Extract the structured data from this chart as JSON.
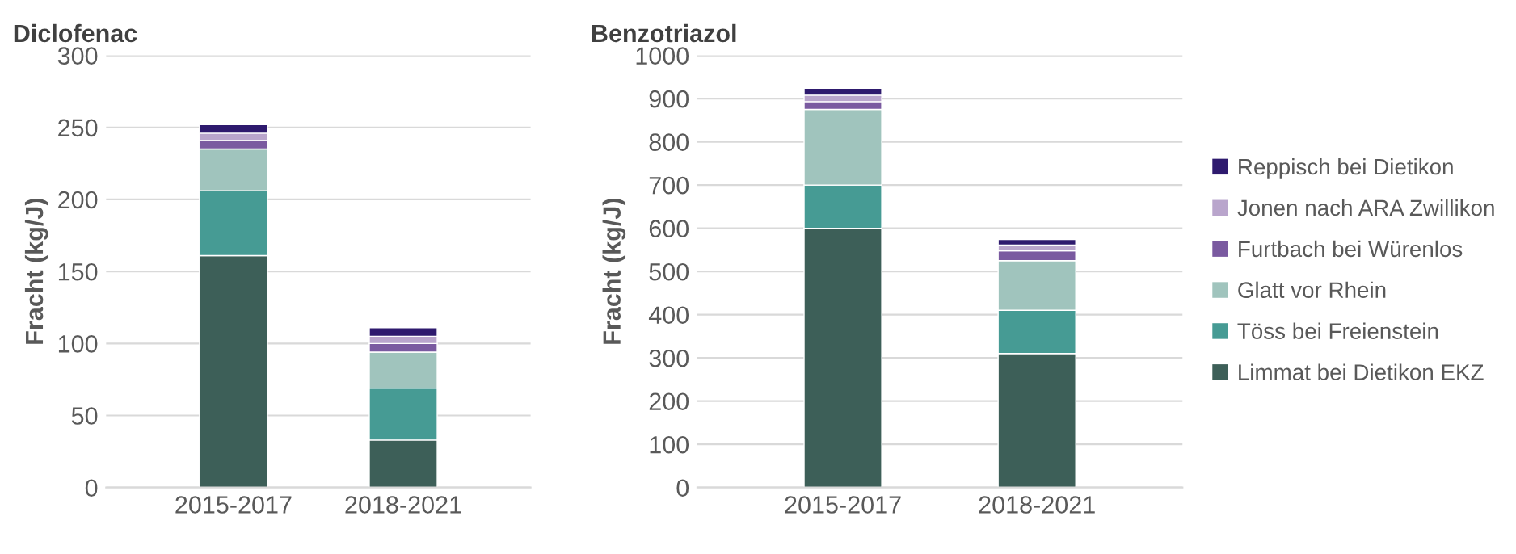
{
  "chart_data": [
    {
      "type": "bar",
      "title": "Diclofenac",
      "ylabel": "Fracht (kg/J)",
      "categories": [
        "2015-2017",
        "2018-2021"
      ],
      "stacked": true,
      "ylim": [
        0,
        300
      ],
      "yticks": [
        0,
        50,
        100,
        150,
        200,
        250,
        300
      ],
      "grid": "y",
      "legend": false,
      "series": [
        {
          "color": "#3d5f58",
          "values": [
            161,
            33
          ]
        },
        {
          "color": "#469b94",
          "values": [
            45,
            36
          ]
        },
        {
          "color": "#a0c4bd",
          "values": [
            29,
            25
          ]
        },
        {
          "color": "#7a5aa0",
          "values": [
            6,
            6
          ]
        },
        {
          "color": "#b9a5cc",
          "values": [
            5,
            5
          ]
        },
        {
          "color": "#2e1a6e",
          "values": [
            6,
            6
          ]
        }
      ]
    },
    {
      "type": "bar",
      "title": "Benzotriazol",
      "ylabel": "Fracht (kg/J)",
      "categories": [
        "2015-2017",
        "2018-2021"
      ],
      "stacked": true,
      "ylim": [
        0,
        1000
      ],
      "yticks": [
        0,
        100,
        200,
        300,
        400,
        500,
        600,
        700,
        800,
        900,
        1000
      ],
      "grid": "y",
      "legend": "right",
      "series": [
        {
          "name": "Limmat bei Dietikon EKZ",
          "color": "#3d5f58",
          "values": [
            600,
            310
          ]
        },
        {
          "name": "Töss bei Freienstein",
          "color": "#469b94",
          "values": [
            100,
            100
          ]
        },
        {
          "name": "Glatt vor Rhein",
          "color": "#a0c4bd",
          "values": [
            175,
            115
          ]
        },
        {
          "name": "Furtbach bei Würenlos",
          "color": "#7a5aa0",
          "values": [
            18,
            23
          ]
        },
        {
          "name": "Jonen nach ARA Zwillikon",
          "color": "#b9a5cc",
          "values": [
            15,
            13
          ]
        },
        {
          "name": "Reppisch bei Dietikon",
          "color": "#2e1a6e",
          "values": [
            16,
            13
          ]
        }
      ]
    }
  ]
}
